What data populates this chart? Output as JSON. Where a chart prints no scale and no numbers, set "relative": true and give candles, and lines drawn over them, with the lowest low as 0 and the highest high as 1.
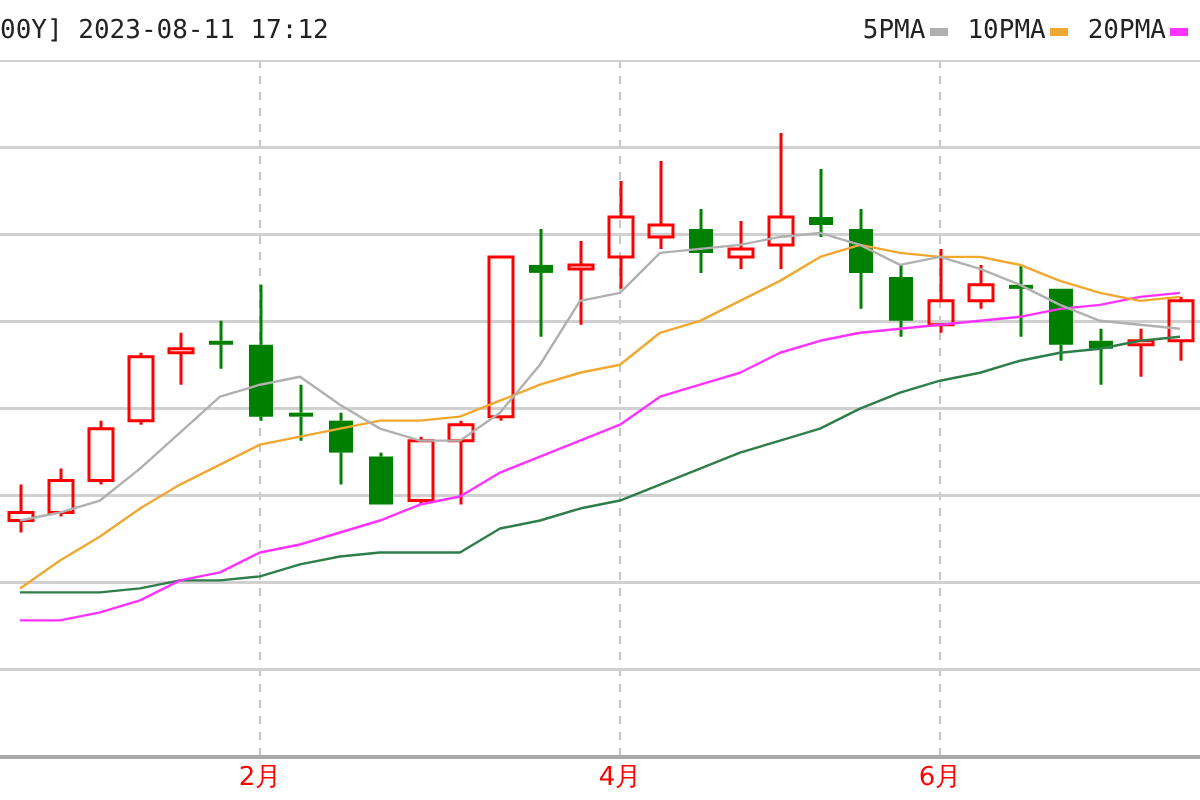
{
  "chart_data": {
    "type": "candlestick",
    "title": "00Y] 2023-08-11 17:12",
    "relative": true,
    "grid": true,
    "legend": "top right",
    "marker": "none",
    "categories": [
      null,
      null,
      null,
      null,
      null,
      null,
      "2月",
      null,
      null,
      null,
      null,
      null,
      null,
      null,
      null,
      "4月",
      null,
      null,
      null,
      null,
      null,
      null,
      null,
      "6月",
      null,
      null,
      null,
      null,
      null,
      null
    ],
    "ohlc": [
      [
        0.03,
        0.12,
        0,
        0.05
      ],
      [
        0.05,
        0.16,
        0.04,
        0.13
      ],
      [
        0.13,
        0.28,
        0.12,
        0.26
      ],
      [
        0.28,
        0.45,
        0.27,
        0.44
      ],
      [
        0.45,
        0.5,
        0.37,
        0.46
      ],
      [
        0.48,
        0.53,
        0.41,
        0.47
      ],
      [
        0.47,
        0.62,
        0.28,
        0.29
      ],
      [
        0.3,
        0.37,
        0.23,
        0.29
      ],
      [
        0.28,
        0.3,
        0.12,
        0.2
      ],
      [
        0.19,
        0.2,
        0.07,
        0.07
      ],
      [
        0.08,
        0.24,
        0.07,
        0.23
      ],
      [
        0.23,
        0.28,
        0.07,
        0.27
      ],
      [
        0.29,
        0.69,
        0.28,
        0.69
      ],
      [
        0.67,
        0.76,
        0.49,
        0.65
      ],
      [
        0.66,
        0.73,
        0.52,
        0.67
      ],
      [
        0.69,
        0.88,
        0.61,
        0.79
      ],
      [
        0.74,
        0.93,
        0.71,
        0.77
      ],
      [
        0.76,
        0.81,
        0.65,
        0.7
      ],
      [
        0.69,
        0.78,
        0.66,
        0.71
      ],
      [
        0.72,
        1,
        0.66,
        0.79
      ],
      [
        0.79,
        0.91,
        0.74,
        0.77
      ],
      [
        0.76,
        0.81,
        0.56,
        0.65
      ],
      [
        0.64,
        0.67,
        0.49,
        0.53
      ],
      [
        0.52,
        0.71,
        0.5,
        0.58
      ],
      [
        0.58,
        0.67,
        0.56,
        0.62
      ],
      [
        0.62,
        0.67,
        0.49,
        0.61
      ],
      [
        0.61,
        0.61,
        0.43,
        0.47
      ],
      [
        0.48,
        0.51,
        0.37,
        0.46
      ],
      [
        0.47,
        0.51,
        0.39,
        0.48
      ],
      [
        0.48,
        0.59,
        0.43,
        0.58
      ]
    ],
    "colors": [
      "#ff0000",
      "#ff0000",
      "#ff0000",
      "#ff0000",
      "#ff0000",
      "#008000",
      "#008000",
      "#008000",
      "#008000",
      "#008000",
      "#ff0000",
      "#ff0000",
      "#ff0000",
      "#008000",
      "#ff0000",
      "#ff0000",
      "#ff0000",
      "#008000",
      "#ff0000",
      "#ff0000",
      "#008000",
      "#008000",
      "#008000",
      "#ff0000",
      "#ff0000",
      "#008000",
      "#008000",
      "#008000",
      "#ff0000",
      "#ff0000"
    ],
    "series": [
      {
        "type": "line",
        "name": "5PMA",
        "color": "#b0b0b0",
        "values": [
          0.03,
          0.05,
          0.08,
          0.16,
          0.25,
          0.34,
          0.37,
          0.39,
          0.32,
          0.26,
          0.23,
          0.23,
          0.3,
          0.42,
          0.58,
          0.6,
          0.7,
          0.71,
          0.72,
          0.74,
          0.75,
          0.72,
          0.67,
          0.69,
          0.66,
          0.62,
          0.57,
          0.53,
          0.52,
          0.51
        ]
      },
      {
        "type": "line",
        "name": "10PMA",
        "color": "#f0a830",
        "values": [
          -0.14,
          -0.07,
          -0.01,
          0.06,
          0.12,
          0.17,
          0.22,
          0.24,
          0.26,
          0.28,
          0.28,
          0.29,
          0.33,
          0.37,
          0.4,
          0.42,
          0.5,
          0.53,
          0.58,
          0.63,
          0.69,
          0.72,
          0.7,
          0.69,
          0.69,
          0.67,
          0.63,
          0.6,
          0.58,
          0.59
        ]
      },
      {
        "type": "line",
        "name": "20PMA",
        "color": "#ff33ff",
        "values": [
          -0.22,
          -0.22,
          -0.2,
          -0.17,
          -0.12,
          -0.1,
          -0.05,
          -0.03,
          0,
          0.03,
          0.07,
          0.09,
          0.15,
          0.19,
          0.23,
          0.27,
          0.34,
          0.37,
          0.4,
          0.45,
          0.48,
          0.5,
          0.51,
          0.52,
          0.53,
          0.54,
          0.56,
          0.57,
          0.59,
          0.6
        ]
      },
      {
        "type": "line",
        "color": "#2e7d4a",
        "values": [
          -0.15,
          -0.15,
          -0.15,
          -0.14,
          -0.12,
          -0.12,
          -0.11,
          -0.08,
          -0.06,
          -0.05,
          -0.05,
          -0.05,
          0.01,
          0.03,
          0.06,
          0.08,
          0.12,
          0.16,
          0.2,
          0.23,
          0.26,
          0.31,
          0.35,
          0.38,
          0.4,
          0.43,
          0.45,
          0.46,
          0.48,
          0.49
        ]
      }
    ]
  }
}
